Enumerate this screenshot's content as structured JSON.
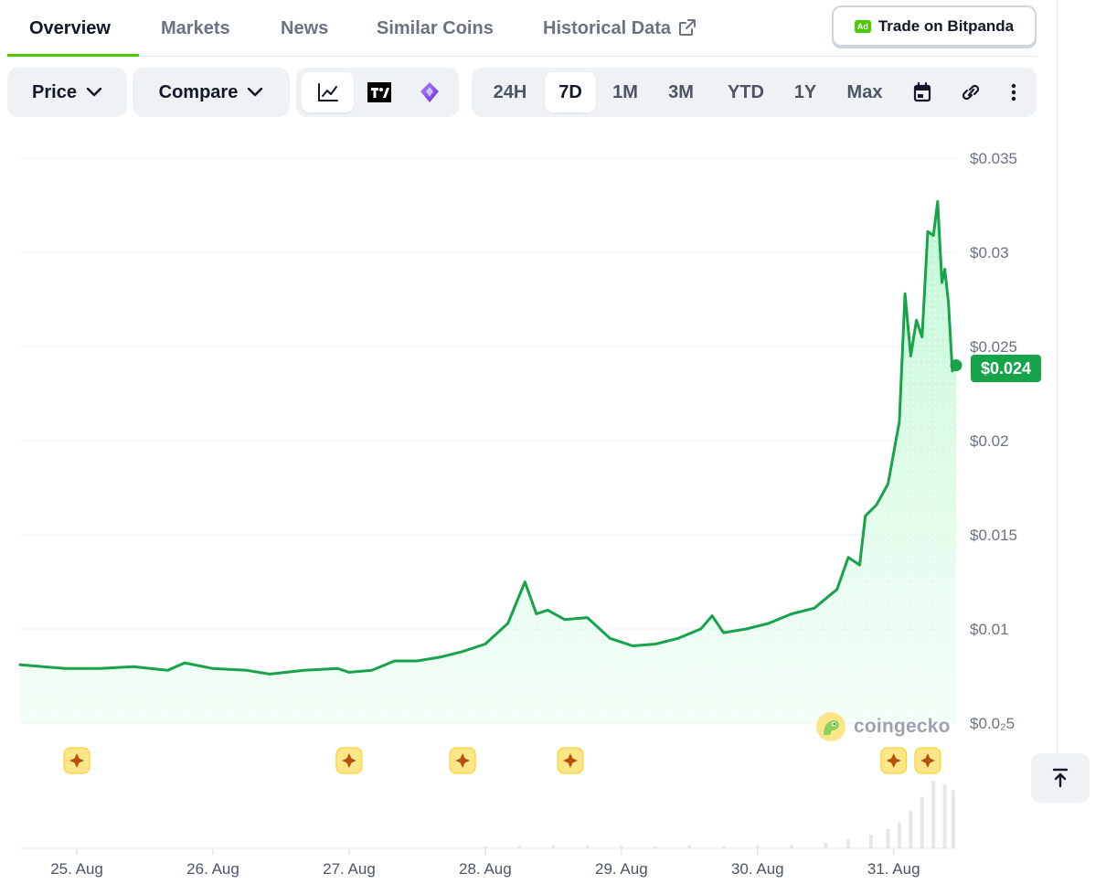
{
  "tabs": [
    {
      "label": "Overview",
      "active": true
    },
    {
      "label": "Markets"
    },
    {
      "label": "News"
    },
    {
      "label": "Similar Coins"
    },
    {
      "label": "Historical Data",
      "icon": "external-link-icon"
    }
  ],
  "trade_button": {
    "ad_label": "Ad",
    "label": "Trade on Bitpanda"
  },
  "toolbar": {
    "price_dropdown": "Price",
    "compare_dropdown": "Compare",
    "chart_types": [
      {
        "icon": "line-chart-icon",
        "active": true
      },
      {
        "icon": "tradingview-icon"
      },
      {
        "icon": "diamond-icon"
      }
    ],
    "ranges": [
      "24H",
      "7D",
      "1M",
      "3M",
      "YTD",
      "1Y",
      "Max"
    ],
    "active_range": "7D",
    "tools": [
      "calendar-icon",
      "link-icon",
      "more-vertical-icon"
    ]
  },
  "chart_data": {
    "type": "line",
    "title": "",
    "xlabel": "",
    "ylabel": "",
    "line_color": "#16a34a",
    "fill_color": "#dcfce7",
    "y_ticks": [
      {
        "value": 0.035,
        "label": "$0.035"
      },
      {
        "value": 0.03,
        "label": "$0.03"
      },
      {
        "value": 0.025,
        "label": "$0.025"
      },
      {
        "value": 0.02,
        "label": "$0.02"
      },
      {
        "value": 0.015,
        "label": "$0.015"
      },
      {
        "value": 0.01,
        "label": "$0.01"
      },
      {
        "value": 0.005,
        "label": "$0.0₂5"
      }
    ],
    "ylim": [
      0.005,
      0.035
    ],
    "xlim": [
      "2024-08-24T14:00",
      "2024-08-31T11:00"
    ],
    "x_ticks": [
      {
        "date": "2024-08-25T00:00",
        "label": "25. Aug"
      },
      {
        "date": "2024-08-26T00:00",
        "label": "26. Aug"
      },
      {
        "date": "2024-08-27T00:00",
        "label": "27. Aug"
      },
      {
        "date": "2024-08-28T00:00",
        "label": "28. Aug"
      },
      {
        "date": "2024-08-29T00:00",
        "label": "29. Aug"
      },
      {
        "date": "2024-08-30T00:00",
        "label": "30. Aug"
      },
      {
        "date": "2024-08-31T00:00",
        "label": "31. Aug"
      }
    ],
    "current_price": "$0.024",
    "series": [
      {
        "points": [
          [
            "2024-08-24T14:00",
            0.0081
          ],
          [
            "2024-08-24T18:00",
            0.008
          ],
          [
            "2024-08-24T22:00",
            0.0079
          ],
          [
            "2024-08-25T04:00",
            0.0079
          ],
          [
            "2024-08-25T10:00",
            0.008
          ],
          [
            "2024-08-25T16:00",
            0.0078
          ],
          [
            "2024-08-25T19:00",
            0.0082
          ],
          [
            "2024-08-26T00:00",
            0.0079
          ],
          [
            "2024-08-26T06:00",
            0.0078
          ],
          [
            "2024-08-26T10:00",
            0.0076
          ],
          [
            "2024-08-26T16:00",
            0.0078
          ],
          [
            "2024-08-26T22:00",
            0.0079
          ],
          [
            "2024-08-27T00:00",
            0.0077
          ],
          [
            "2024-08-27T04:00",
            0.0078
          ],
          [
            "2024-08-27T08:00",
            0.0083
          ],
          [
            "2024-08-27T12:00",
            0.0083
          ],
          [
            "2024-08-27T16:00",
            0.0085
          ],
          [
            "2024-08-27T20:00",
            0.0088
          ],
          [
            "2024-08-28T00:00",
            0.0092
          ],
          [
            "2024-08-28T04:00",
            0.0103
          ],
          [
            "2024-08-28T07:00",
            0.0125
          ],
          [
            "2024-08-28T09:00",
            0.0108
          ],
          [
            "2024-08-28T11:00",
            0.011
          ],
          [
            "2024-08-28T14:00",
            0.0105
          ],
          [
            "2024-08-28T18:00",
            0.0106
          ],
          [
            "2024-08-28T22:00",
            0.0095
          ],
          [
            "2024-08-29T02:00",
            0.0091
          ],
          [
            "2024-08-29T06:00",
            0.0092
          ],
          [
            "2024-08-29T10:00",
            0.0095
          ],
          [
            "2024-08-29T14:00",
            0.01
          ],
          [
            "2024-08-29T16:00",
            0.0107
          ],
          [
            "2024-08-29T18:00",
            0.0098
          ],
          [
            "2024-08-29T22:00",
            0.01
          ],
          [
            "2024-08-30T02:00",
            0.0103
          ],
          [
            "2024-08-30T06:00",
            0.0108
          ],
          [
            "2024-08-30T10:00",
            0.0111
          ],
          [
            "2024-08-30T14:00",
            0.0121
          ],
          [
            "2024-08-30T16:00",
            0.0138
          ],
          [
            "2024-08-30T18:00",
            0.0134
          ],
          [
            "2024-08-30T19:00",
            0.016
          ],
          [
            "2024-08-30T21:00",
            0.0166
          ],
          [
            "2024-08-30T23:00",
            0.0177
          ],
          [
            "2024-08-31T01:00",
            0.021
          ],
          [
            "2024-08-31T02:00",
            0.0278
          ],
          [
            "2024-08-31T03:00",
            0.0245
          ],
          [
            "2024-08-31T04:00",
            0.0264
          ],
          [
            "2024-08-31T05:00",
            0.0255
          ],
          [
            "2024-08-31T06:00",
            0.0311
          ],
          [
            "2024-08-31T07:00",
            0.0309
          ],
          [
            "2024-08-31T07:45",
            0.0327
          ],
          [
            "2024-08-31T08:30",
            0.0284
          ],
          [
            "2024-08-31T09:00",
            0.0291
          ],
          [
            "2024-08-31T09:40",
            0.0273
          ],
          [
            "2024-08-31T10:20",
            0.0237
          ],
          [
            "2024-08-31T11:00",
            0.024
          ]
        ]
      }
    ],
    "volume": [
      [
        "2024-08-28T00:00",
        0.03
      ],
      [
        "2024-08-28T06:00",
        0.04
      ],
      [
        "2024-08-28T12:00",
        0.05
      ],
      [
        "2024-08-28T18:00",
        0.04
      ],
      [
        "2024-08-29T00:00",
        0.04
      ],
      [
        "2024-08-29T06:00",
        0.03
      ],
      [
        "2024-08-29T12:00",
        0.04
      ],
      [
        "2024-08-29T18:00",
        0.03
      ],
      [
        "2024-08-30T00:00",
        0.04
      ],
      [
        "2024-08-30T06:00",
        0.05
      ],
      [
        "2024-08-30T12:00",
        0.08
      ],
      [
        "2024-08-30T16:00",
        0.13
      ],
      [
        "2024-08-30T20:00",
        0.2
      ],
      [
        "2024-08-30T23:00",
        0.28
      ],
      [
        "2024-08-31T01:00",
        0.38
      ],
      [
        "2024-08-31T03:00",
        0.55
      ],
      [
        "2024-08-31T05:00",
        0.75
      ],
      [
        "2024-08-31T07:00",
        0.98
      ],
      [
        "2024-08-31T09:00",
        0.93
      ],
      [
        "2024-08-31T10:30",
        0.85
      ]
    ],
    "event_markers": [
      "2024-08-25T00:00",
      "2024-08-27T00:00",
      "2024-08-27T20:00",
      "2024-08-28T15:00",
      "2024-08-31T00:00",
      "2024-08-31T06:00"
    ],
    "watermark": "coingecko"
  }
}
